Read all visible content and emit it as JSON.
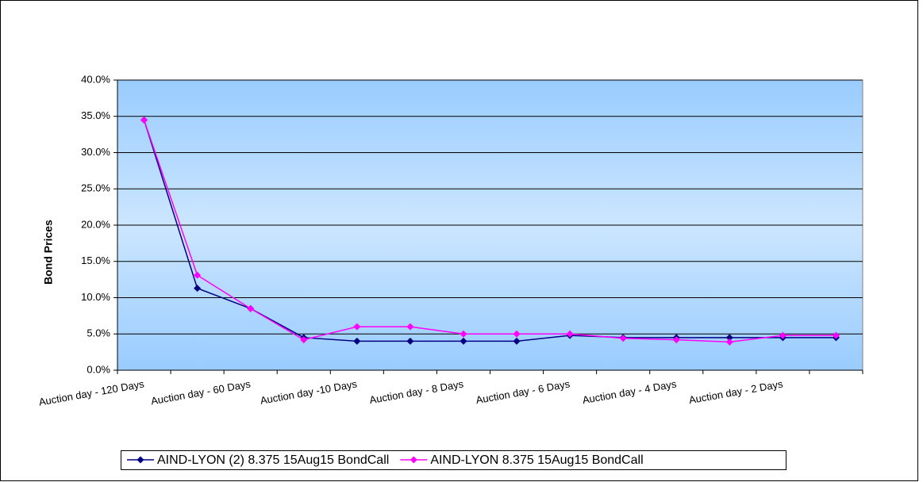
{
  "chart_data": {
    "type": "line",
    "y_label": "Bond Prices",
    "categories": [
      "Auction day - 120 Days",
      null,
      "Auction day - 60 Days",
      null,
      "Auction day -10 Days",
      null,
      "Auction day - 8 Days",
      null,
      "Auction day - 6 Days",
      null,
      "Auction day - 4 Days",
      null,
      "Auction day - 2 Days",
      null
    ],
    "series": [
      {
        "name": "AIND-LYON (2) 8.375 15Aug15 BondCall",
        "color": "#000080",
        "values": [
          34.5,
          11.3,
          8.5,
          4.5,
          4.0,
          4.0,
          4.0,
          4.0,
          4.8,
          4.5,
          4.5,
          4.5,
          4.5,
          4.5
        ]
      },
      {
        "name": "AIND-LYON 8.375 15Aug15 BondCall",
        "color": "#ff00ff",
        "values": [
          34.5,
          13.1,
          8.5,
          4.2,
          6.0,
          6.0,
          5.0,
          5.0,
          5.0,
          4.4,
          4.2,
          3.9,
          4.8,
          4.8
        ]
      }
    ],
    "ylim": [
      0,
      40
    ],
    "yticks": [
      {
        "value": 0,
        "label": "0.0%"
      },
      {
        "value": 5,
        "label": "5.0%"
      },
      {
        "value": 10,
        "label": "10.0%"
      },
      {
        "value": 15,
        "label": "15.0%"
      },
      {
        "value": 20,
        "label": "20.0%"
      },
      {
        "value": 25,
        "label": "25.0%"
      },
      {
        "value": 30,
        "label": "30.0%"
      },
      {
        "value": 35,
        "label": "35.0%"
      },
      {
        "value": 40,
        "label": "40.0%"
      }
    ],
    "grid": true,
    "legend": "bottom"
  }
}
